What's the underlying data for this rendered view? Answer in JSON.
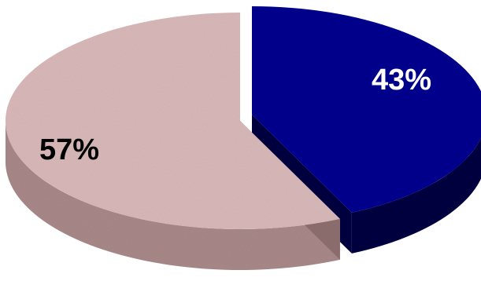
{
  "chart_data": {
    "type": "pie",
    "style": "3d-exploded",
    "slices": [
      {
        "label": "43%",
        "value": 43,
        "color": "#00008B",
        "side_color": "#00003F",
        "text_color": "#ffffff"
      },
      {
        "label": "57%",
        "value": 57,
        "color": "#D8B8B8",
        "side_color": "#A88888",
        "text_color": "#000000"
      }
    ],
    "legend": "none",
    "title": ""
  }
}
